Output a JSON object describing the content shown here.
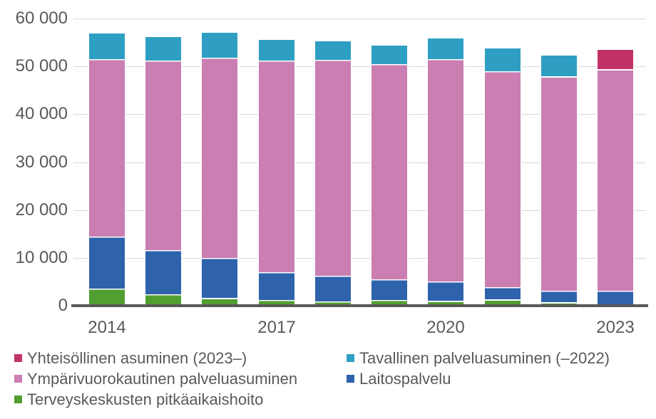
{
  "chart_data": {
    "type": "bar",
    "stacked": true,
    "title": "",
    "xlabel": "",
    "ylabel": "",
    "categories": [
      "2014",
      "2015",
      "2016",
      "2017",
      "2018",
      "2019",
      "2020",
      "2021",
      "2022",
      "2023"
    ],
    "series": [
      {
        "key": "terveyskeskus",
        "name": "Terveyskeskusten pitkäaikaishoito",
        "color": "#519e31",
        "values": [
          3500,
          2200,
          1400,
          1000,
          800,
          1000,
          800,
          1100,
          500,
          0
        ]
      },
      {
        "key": "laitospalvelu",
        "name": "Laitospalvelu",
        "color": "#2e62ab",
        "values": [
          10800,
          9300,
          8400,
          5800,
          5300,
          4300,
          4200,
          2700,
          2600,
          3000
        ]
      },
      {
        "key": "ympärivuorokautinen",
        "name": "Ympärivuorokautinen palveluasuminen",
        "color": "#ca7eb2",
        "values": [
          37000,
          39700,
          41800,
          44200,
          45200,
          45100,
          46400,
          45100,
          44600,
          46200
        ]
      },
      {
        "key": "tavallinen",
        "name": "Tavallinen palveluasuminen (–2022)",
        "color": "#2e9fc2",
        "values": [
          5500,
          5000,
          5400,
          4500,
          4000,
          4000,
          4500,
          4900,
          4500,
          0
        ]
      },
      {
        "key": "yhteisöllinen",
        "name": "Yhteisöllinen asuminen (2023–)",
        "color": "#c13366",
        "values": [
          0,
          0,
          0,
          0,
          0,
          0,
          0,
          0,
          0,
          4200
        ]
      }
    ],
    "ylim": [
      0,
      60000
    ],
    "ytick_step": 10000,
    "ytick_labels": [
      "0",
      "10 000",
      "20 000",
      "30 000",
      "40 000",
      "50 000",
      "60 000"
    ],
    "xtick_labels_shown": [
      "2014",
      "2017",
      "2020",
      "2023"
    ],
    "grid": true,
    "legend_position": "bottom"
  },
  "legend": {
    "columns": [
      {
        "items": [
          {
            "label": "Yhteisöllinen asuminen (2023–)",
            "color": "#c13366",
            "series_key": "yhteisöllinen"
          },
          {
            "label": "Ympärivuorokautinen palveluasuminen",
            "color": "#ca7eb2",
            "series_key": "ympärivuorokautinen"
          },
          {
            "label": "Terveyskeskusten pitkäaikaishoito",
            "color": "#519e31",
            "series_key": "terveyskeskus"
          }
        ]
      },
      {
        "items": [
          {
            "label": "Tavallinen palveluasuminen (–2022)",
            "color": "#2e9fc2",
            "series_key": "tavallinen"
          },
          {
            "label": "Laitospalvelu",
            "color": "#2e62ab",
            "series_key": "laitospalvelu"
          }
        ]
      }
    ]
  },
  "axis": {
    "label_color": "#595959",
    "axis_line_color": "#595959",
    "grid_color": "#d9d9d9"
  }
}
